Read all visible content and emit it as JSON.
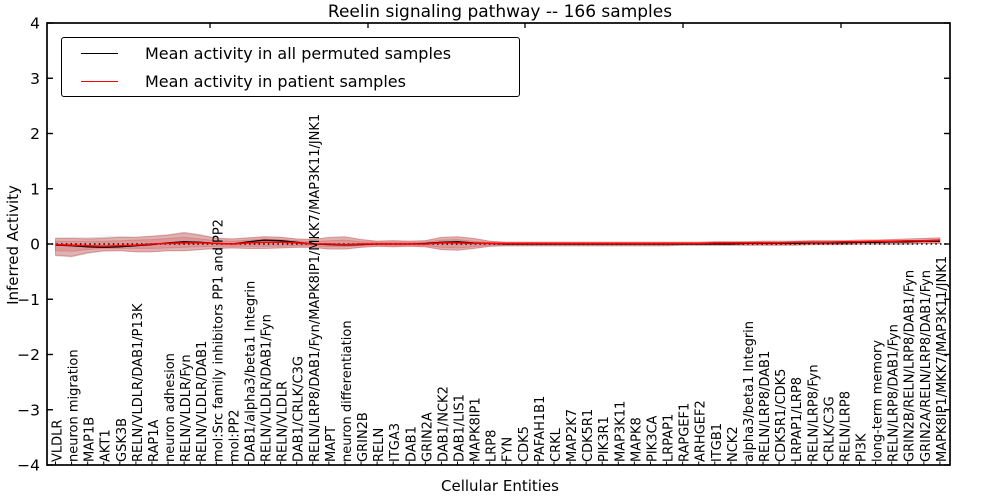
{
  "figure": {
    "title": "Reelin signaling pathway -- 166 samples",
    "xlabel": "Cellular Entities",
    "ylabel": "Inferred Activity"
  },
  "legend": {
    "position": "upper left",
    "items": [
      {
        "label": "Mean activity in all permuted samples",
        "color": "#000000"
      },
      {
        "label": "Mean activity in patient samples",
        "color": "#ff0000"
      }
    ]
  },
  "chart_data": {
    "type": "line",
    "title": "Reelin signaling pathway -- 166 samples",
    "xlabel": "Cellular Entities",
    "ylabel": "Inferred Activity",
    "ylim": [
      -4,
      4
    ],
    "grid": false,
    "legend_position": "upper left",
    "ytick_labels": [
      "4",
      "3",
      "2",
      "1",
      "0",
      "−1",
      "−2",
      "−3",
      "−4"
    ],
    "ytick_values": [
      4,
      3,
      2,
      1,
      0,
      -1,
      -2,
      -3,
      -4
    ],
    "zero_line": {
      "style": "dotted",
      "color": "#000000",
      "y": 0
    },
    "categories": [
      "VLDLR",
      "neuron migration",
      "MAP1B",
      "AKT1",
      "GSK3B",
      "RELN/VLDLR/DAB1/P13K",
      "RAP1A",
      "neuron adhesion",
      "RELN/VLDLR/Fyn",
      "RELN/VLDLR/DAB1",
      "mol:Src family inhibitors PP1 and PP2",
      "mol:PP2",
      "DAB1/alpha3/beta1 Integrin",
      "RELN/VLDLR/DAB1/Fyn",
      "RELN/VLDLR",
      "DAB1/CRLK/C3G",
      "RELN/LRP8/DAB1/Fyn/MAPK8IP1/MKK7/MAP3K11/JNK1",
      "MAPT",
      "neuron differentiation",
      "GRIN2B",
      "RELN",
      "ITGA3",
      "DAB1",
      "GRIN2A",
      "DAB1/NCK2",
      "DAB1/LIS1",
      "MAPK8IP1",
      "LRP8",
      "FYN",
      "CDK5",
      "PAFAH1B1",
      "CRKL",
      "MAP2K7",
      "CDK5R1",
      "PIK3R1",
      "MAP3K11",
      "MAPK8",
      "PIK3CA",
      "LRPAP1",
      "RAPGEF1",
      "ARHGEF2",
      "ITGB1",
      "NCK2",
      "alpha3/beta1 Integrin",
      "RELN/LRP8/DAB1",
      "CDK5R1/CDK5",
      "LRPAP1/LRP8",
      "RELN/LRP8/Fyn",
      "CRLK/C3G",
      "RELN/LRP8",
      "PI3K",
      "long-term memory",
      "RELN/LRP8/DAB1/Fyn",
      "GRIN2B/RELN/LRP8/DAB1/Fyn",
      "GRIN2A/RELN/LRP8/DAB1/Fyn",
      "MAPK8IP1/MKK7/MAP3K11/JNK1"
    ],
    "series": [
      {
        "name": "Mean activity in all permuted samples",
        "color": "#000000",
        "width": 1.3,
        "values": [
          -0.02,
          -0.03,
          -0.05,
          -0.06,
          -0.05,
          -0.03,
          -0.01,
          0.02,
          0.04,
          0.03,
          0.01,
          0.0,
          0.04,
          0.07,
          0.06,
          0.03,
          0.0,
          -0.01,
          -0.02,
          -0.01,
          0.0,
          0.0,
          0.0,
          0.01,
          0.03,
          0.04,
          0.02,
          0.01,
          0.0,
          0.0,
          0.0,
          0.0,
          0.0,
          0.0,
          0.0,
          0.0,
          0.0,
          0.0,
          0.0,
          0.0,
          0.0,
          0.0,
          0.0,
          0.01,
          0.01,
          0.01,
          0.01,
          0.02,
          0.02,
          0.02,
          0.03,
          0.03,
          0.04,
          0.04,
          0.05,
          0.05
        ]
      },
      {
        "name": "Mean activity in patient samples",
        "color": "#ff0000",
        "width": 1.5,
        "values": [
          -0.01,
          -0.02,
          -0.03,
          -0.04,
          -0.03,
          -0.02,
          0.0,
          0.01,
          0.02,
          0.02,
          0.01,
          0.0,
          0.02,
          0.03,
          0.03,
          0.02,
          0.0,
          0.0,
          -0.01,
          0.0,
          0.0,
          0.0,
          0.0,
          0.0,
          0.02,
          0.02,
          0.01,
          0.01,
          0.01,
          0.01,
          0.01,
          0.01,
          0.01,
          0.01,
          0.01,
          0.01,
          0.01,
          0.01,
          0.01,
          0.01,
          0.01,
          0.02,
          0.02,
          0.02,
          0.02,
          0.02,
          0.03,
          0.03,
          0.03,
          0.04,
          0.04,
          0.05,
          0.05,
          0.06,
          0.06,
          0.07
        ]
      }
    ],
    "bands": [
      {
        "name": "permuted-sample-range",
        "color": "#999999",
        "opacity": 0.38,
        "stroke_opacity": 0.0,
        "upper": [
          0.12,
          0.12,
          0.12,
          0.13,
          0.14,
          0.13,
          0.15,
          0.18,
          0.22,
          0.18,
          0.12,
          0.1,
          0.12,
          0.14,
          0.13,
          0.1,
          0.09,
          0.12,
          0.13,
          0.09,
          0.06,
          0.07,
          0.06,
          0.07,
          0.12,
          0.13,
          0.11,
          0.06,
          0.04,
          0.04,
          0.04,
          0.04,
          0.04,
          0.04,
          0.04,
          0.04,
          0.04,
          0.04,
          0.04,
          0.04,
          0.04,
          0.05,
          0.05,
          0.05,
          0.06,
          0.06,
          0.06,
          0.07,
          0.07,
          0.07,
          0.08,
          0.08,
          0.09,
          0.1,
          0.11,
          0.12
        ],
        "lower": [
          -0.22,
          -0.24,
          -0.18,
          -0.14,
          -0.13,
          -0.15,
          -0.15,
          -0.13,
          -0.13,
          -0.11,
          -0.09,
          -0.08,
          -0.09,
          -0.09,
          -0.08,
          -0.07,
          -0.07,
          -0.1,
          -0.1,
          -0.07,
          -0.05,
          -0.06,
          -0.05,
          -0.06,
          -0.11,
          -0.12,
          -0.09,
          -0.05,
          -0.04,
          -0.04,
          -0.04,
          -0.04,
          -0.04,
          -0.04,
          -0.04,
          -0.04,
          -0.04,
          -0.04,
          -0.04,
          -0.03,
          -0.03,
          -0.03,
          -0.03,
          -0.03,
          -0.03,
          -0.03,
          -0.03,
          -0.02,
          -0.02,
          -0.02,
          -0.01,
          -0.01,
          -0.01,
          -0.01,
          0.0,
          0.0
        ]
      },
      {
        "name": "patient-sample-range-outer",
        "color": "#e25d5d",
        "opacity": 0.3,
        "stroke_opacity": 0.55,
        "upper": [
          0.1,
          0.1,
          0.09,
          0.1,
          0.12,
          0.12,
          0.14,
          0.16,
          0.2,
          0.16,
          0.1,
          0.09,
          0.11,
          0.13,
          0.12,
          0.09,
          0.08,
          0.12,
          0.13,
          0.08,
          0.05,
          0.06,
          0.05,
          0.06,
          0.12,
          0.13,
          0.1,
          0.05,
          0.03,
          0.03,
          0.03,
          0.03,
          0.03,
          0.03,
          0.03,
          0.03,
          0.03,
          0.03,
          0.03,
          0.03,
          0.03,
          0.04,
          0.04,
          0.04,
          0.05,
          0.05,
          0.05,
          0.06,
          0.06,
          0.06,
          0.07,
          0.07,
          0.08,
          0.09,
          0.1,
          0.11
        ],
        "lower": [
          -0.2,
          -0.22,
          -0.16,
          -0.12,
          -0.12,
          -0.14,
          -0.14,
          -0.12,
          -0.12,
          -0.1,
          -0.08,
          -0.07,
          -0.08,
          -0.08,
          -0.07,
          -0.06,
          -0.06,
          -0.09,
          -0.09,
          -0.06,
          -0.04,
          -0.05,
          -0.04,
          -0.05,
          -0.1,
          -0.11,
          -0.08,
          -0.04,
          -0.03,
          -0.03,
          -0.03,
          -0.03,
          -0.03,
          -0.03,
          -0.03,
          -0.03,
          -0.03,
          -0.03,
          -0.03,
          -0.02,
          -0.02,
          -0.02,
          -0.02,
          -0.02,
          -0.02,
          -0.02,
          -0.02,
          -0.01,
          -0.01,
          -0.01,
          0.0,
          0.0,
          0.0,
          0.0,
          0.01,
          0.01
        ]
      },
      {
        "name": "patient-sample-range-inner",
        "color": "#e25d5d",
        "opacity": 0.3,
        "stroke_opacity": 0.45,
        "upper": [
          0.05,
          0.05,
          0.05,
          0.05,
          0.06,
          0.07,
          0.08,
          0.1,
          0.12,
          0.09,
          0.06,
          0.05,
          0.07,
          0.09,
          0.08,
          0.06,
          0.04,
          0.06,
          0.07,
          0.04,
          0.03,
          0.03,
          0.03,
          0.03,
          0.07,
          0.08,
          0.05,
          0.03,
          0.02,
          0.02,
          0.02,
          0.02,
          0.02,
          0.02,
          0.02,
          0.02,
          0.02,
          0.02,
          0.02,
          0.02,
          0.02,
          0.02,
          0.02,
          0.03,
          0.03,
          0.03,
          0.03,
          0.04,
          0.04,
          0.04,
          0.05,
          0.05,
          0.06,
          0.06,
          0.07,
          0.08
        ],
        "lower": [
          -0.12,
          -0.13,
          -0.1,
          -0.08,
          -0.08,
          -0.08,
          -0.08,
          -0.07,
          -0.06,
          -0.05,
          -0.04,
          -0.04,
          -0.04,
          -0.04,
          -0.04,
          -0.03,
          -0.03,
          -0.05,
          -0.05,
          -0.03,
          -0.02,
          -0.03,
          -0.02,
          -0.03,
          -0.06,
          -0.07,
          -0.05,
          -0.02,
          -0.02,
          -0.02,
          -0.02,
          -0.02,
          -0.02,
          -0.02,
          -0.02,
          -0.02,
          -0.02,
          -0.02,
          -0.02,
          -0.01,
          -0.01,
          -0.01,
          -0.01,
          -0.01,
          -0.01,
          -0.01,
          -0.01,
          0.0,
          0.0,
          0.0,
          0.01,
          0.01,
          0.02,
          0.02,
          0.03,
          0.03
        ]
      }
    ]
  }
}
